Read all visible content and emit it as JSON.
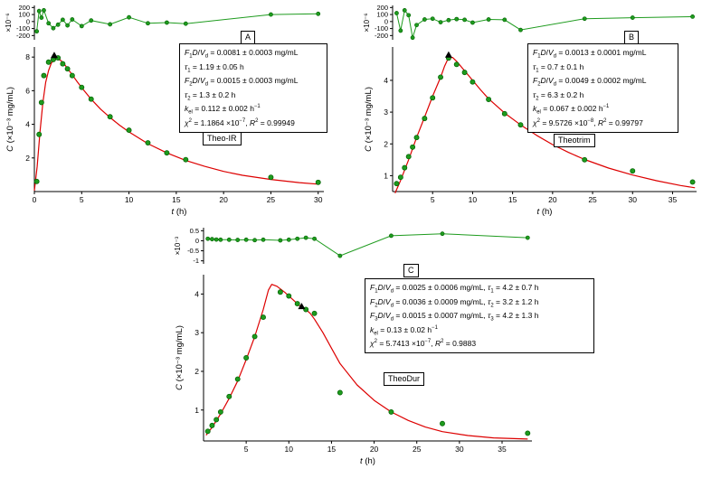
{
  "colors": {
    "data_green": "#1e9b1e",
    "data_green_dark": "#005f00",
    "fit_red": "#dd0000",
    "marker_black": "#000000",
    "axis": "#000000",
    "background": "#ffffff"
  },
  "chart_data": [
    {
      "type": "scatter",
      "panel_label": "A",
      "drug_label": "Theo-IR",
      "residual": {
        "ylabel": "×10⁻⁶",
        "ylim": [
          -260,
          230
        ],
        "yticks": [
          200,
          100,
          0,
          -100,
          -200
        ],
        "x": [
          0.25,
          0.5,
          0.75,
          1,
          1.5,
          2,
          2.5,
          3,
          3.5,
          4,
          5,
          6,
          8,
          10,
          12,
          14,
          16,
          25,
          30
        ],
        "y": [
          -140,
          150,
          55,
          160,
          -25,
          -95,
          -45,
          25,
          -55,
          30,
          -65,
          15,
          -40,
          60,
          -25,
          -15,
          -30,
          100,
          110
        ]
      },
      "main": {
        "xlabel_var": "t",
        "xlabel_units": "(h)",
        "ylabel_var": "C",
        "ylabel_units": "(×10⁻³ mg/mL)",
        "xlim": [
          0,
          30.6
        ],
        "xticks": [
          0,
          5,
          10,
          15,
          20,
          25,
          30
        ],
        "ylim": [
          0,
          8.6
        ],
        "yticks": [
          2,
          4,
          6,
          8
        ],
        "points": {
          "x": [
            0.25,
            0.5,
            0.75,
            1,
            1.5,
            2,
            2.5,
            3,
            3.5,
            4,
            5,
            6,
            8,
            10,
            12,
            14,
            16,
            25,
            30
          ],
          "y": [
            0.6,
            3.4,
            5.3,
            6.9,
            7.7,
            7.85,
            7.95,
            7.6,
            7.3,
            6.9,
            6.2,
            5.5,
            4.45,
            3.65,
            2.9,
            2.3,
            1.9,
            0.85,
            0.55
          ]
        },
        "fit_curve": {
          "x": [
            0,
            0.3,
            0.6,
            0.9,
            1.2,
            1.5,
            1.8,
            2.1,
            2.4,
            2.8,
            3.2,
            3.6,
            4,
            4.5,
            5,
            6,
            7,
            8,
            9,
            10,
            12,
            14,
            16,
            18,
            20,
            22,
            25,
            28,
            30
          ],
          "y": [
            0.05,
            1.5,
            3.6,
            5.3,
            6.5,
            7.2,
            7.65,
            7.85,
            7.9,
            7.8,
            7.55,
            7.25,
            6.95,
            6.55,
            6.18,
            5.5,
            4.9,
            4.4,
            3.95,
            3.55,
            2.85,
            2.3,
            1.85,
            1.5,
            1.2,
            0.97,
            0.72,
            0.53,
            0.44
          ]
        },
        "peak_marker": {
          "x": 2.1,
          "y": 8.1
        }
      },
      "annotation_lines": [
        "<i>F</i><sub>1</sub><i>D</i>/<i>V</i><sub>d</sub> = 0.0081 ± 0.0003 mg/mL",
        "<i>τ</i><sub>1</sub> = 1.19 ± 0.05 h",
        "<i>F</i><sub>2</sub><i>D</i>/<i>V</i><sub>d</sub> = 0.0015 ± 0.0003 mg/mL",
        "<i>τ</i><sub>2</sub> = 1.3 ± 0.2 h",
        "<i>k</i><sub>el</sub> = 0.112 ± 0.002 h<sup>−1</sup>",
        "<i>χ</i><sup>2</sup> = 1.1864 ×10<sup>−7</sup>,  <i>R</i><sup>2</sup> = 0.99949"
      ]
    },
    {
      "type": "scatter",
      "panel_label": "B",
      "drug_label": "Theotrim",
      "residual": {
        "ylabel": "×10⁻⁶",
        "ylim": [
          -260,
          230
        ],
        "yticks": [
          200,
          100,
          0,
          -100,
          -200
        ],
        "x": [
          0.5,
          1,
          1.5,
          2,
          2.5,
          3,
          4,
          5,
          6,
          7,
          8,
          9,
          10,
          12,
          14,
          16,
          24,
          30,
          37.5
        ],
        "y": [
          120,
          -130,
          160,
          90,
          -230,
          -50,
          30,
          40,
          -10,
          20,
          35,
          25,
          -15,
          30,
          25,
          -120,
          40,
          55,
          70
        ]
      },
      "main": {
        "xlabel_var": "t",
        "xlabel_units": "(h)",
        "ylabel_var": "C",
        "ylabel_units": "(×10⁻³ mg/mL)",
        "xlim": [
          0,
          38
        ],
        "xticks": [
          5,
          10,
          15,
          20,
          25,
          30,
          35
        ],
        "ylim": [
          0.5,
          5.05
        ],
        "yticks": [
          1,
          2,
          3,
          4
        ],
        "points": {
          "x": [
            0.5,
            1,
            1.5,
            2,
            2.5,
            3,
            4,
            5,
            6,
            7,
            8,
            9,
            10,
            12,
            14,
            16,
            24,
            30,
            37.5
          ],
          "y": [
            0.75,
            0.95,
            1.25,
            1.6,
            1.9,
            2.2,
            2.8,
            3.45,
            4.1,
            4.7,
            4.5,
            4.25,
            3.95,
            3.4,
            2.95,
            2.6,
            1.5,
            1.15,
            0.8
          ]
        },
        "fit_curve": {
          "x": [
            0.3,
            1,
            2,
            3,
            4,
            5,
            6,
            6.5,
            7,
            7.5,
            8,
            9,
            10,
            11,
            12,
            14,
            16,
            18,
            20,
            22,
            24,
            27,
            30,
            33,
            36,
            37.8
          ],
          "y": [
            0.45,
            0.85,
            1.5,
            2.2,
            2.85,
            3.5,
            4.1,
            4.45,
            4.72,
            4.72,
            4.6,
            4.3,
            4.0,
            3.7,
            3.42,
            2.97,
            2.6,
            2.27,
            1.98,
            1.73,
            1.51,
            1.24,
            1.02,
            0.84,
            0.69,
            0.62
          ]
        },
        "peak_marker": {
          "x": 7,
          "y": 4.8
        }
      },
      "annotation_lines": [
        "<i>F</i><sub>1</sub><i>D</i>/<i>V</i><sub>d</sub> = 0.0013 ± 0.0001 mg/mL",
        "<i>τ</i><sub>1</sub> = 0.7 ± 0.1 h",
        "<i>F</i><sub>2</sub><i>D</i>/<i>V</i><sub>d</sub> = 0.0049 ± 0.0002 mg/mL",
        "<i>τ</i><sub>2</sub> = 6.3 ± 0.2 h",
        "<i>k</i><sub>el</sub> = 0.067 ± 0.002 h<sup>−1</sup>",
        "<i>χ</i><sup>2</sup> = 9.5726 ×10<sup>−8</sup>,  <i>R</i><sup>2</sup> = 0.99797"
      ]
    },
    {
      "type": "scatter",
      "panel_label": "C",
      "drug_label": "TheoDur",
      "residual": {
        "ylabel": "×10⁻³",
        "ylim": [
          -1.15,
          0.65
        ],
        "yticks": [
          0.5,
          0.0,
          -0.5,
          -1.0
        ],
        "x": [
          0.5,
          1,
          1.5,
          2,
          3,
          4,
          5,
          6,
          7,
          9,
          10,
          11,
          12,
          13,
          16,
          22,
          28,
          38
        ],
        "y": [
          0.1,
          0.08,
          0.06,
          0.05,
          0.05,
          0.04,
          0.05,
          0.03,
          0.05,
          0.02,
          0.05,
          0.1,
          0.15,
          0.1,
          -0.75,
          0.25,
          0.35,
          0.15
        ]
      },
      "main": {
        "xlabel_var": "t",
        "xlabel_units": "(h)",
        "ylabel_var": "C",
        "ylabel_units": "(×10⁻³ mg/mL)",
        "xlim": [
          0,
          38.5
        ],
        "xticks": [
          5,
          10,
          15,
          20,
          25,
          30,
          35
        ],
        "ylim": [
          0.2,
          4.5
        ],
        "yticks": [
          1,
          2,
          3,
          4
        ],
        "points": {
          "x": [
            0.5,
            1,
            1.5,
            2,
            3,
            4,
            5,
            6,
            7,
            9,
            10,
            11,
            12,
            13,
            16,
            22,
            28,
            38
          ],
          "y": [
            0.45,
            0.6,
            0.75,
            0.95,
            1.35,
            1.8,
            2.35,
            2.9,
            3.4,
            4.05,
            3.95,
            3.75,
            3.6,
            3.5,
            1.45,
            0.95,
            0.65,
            0.4
          ]
        },
        "fit_curve": {
          "x": [
            0.3,
            1,
            2,
            3,
            4,
            5,
            6,
            7,
            7.6,
            8,
            8.6,
            9.5,
            10.5,
            11.5,
            12,
            12.5,
            13,
            14,
            15,
            16,
            18,
            20,
            22,
            24,
            26,
            28,
            31,
            34,
            38
          ],
          "y": [
            0.35,
            0.55,
            0.9,
            1.3,
            1.75,
            2.3,
            2.9,
            3.6,
            4.1,
            4.25,
            4.2,
            4.05,
            3.85,
            3.65,
            3.6,
            3.5,
            3.35,
            3.0,
            2.6,
            2.2,
            1.65,
            1.25,
            0.95,
            0.73,
            0.56,
            0.44,
            0.34,
            0.28,
            0.25
          ]
        },
        "peak_marker": {
          "x": 11.5,
          "y": 3.68
        }
      },
      "annotation_lines": [
        "<i>F</i><sub>1</sub><i>D</i>/<i>V</i><sub>d</sub> = 0.0025 ± 0.0006 mg/mL, <i>τ</i><sub>1</sub> = 4.2 ± 0.7 h",
        "<i>F</i><sub>2</sub><i>D</i>/<i>V</i><sub>d</sub> = 0.0036 ± 0.0009 mg/mL, <i>τ</i><sub>2</sub> = 3.2 ± 1.2 h",
        "<i>F</i><sub>3</sub><i>D</i>/<i>V</i><sub>d</sub> = 0.0015 ± 0.0007 mg/mL, <i>τ</i><sub>3</sub> = 4.2 ± 1.3 h",
        "<i>k</i><sub>el</sub> = 0.13 ± 0.02 h<sup>−1</sup>",
        "<i>χ</i><sup>2</sup> = 5.7413 ×10<sup>−7</sup>,  <i>R</i><sup>2</sup> = 0.9883"
      ]
    }
  ]
}
